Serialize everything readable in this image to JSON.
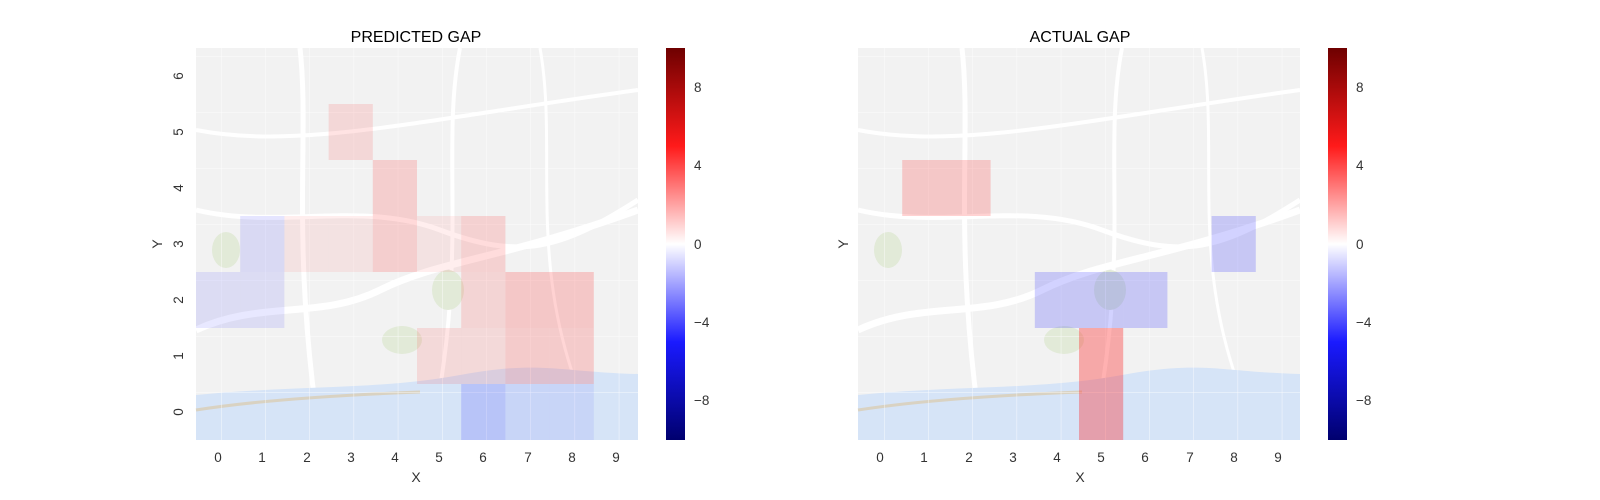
{
  "chart_data": [
    {
      "type": "heatmap",
      "title": "PREDICTED GAP",
      "xlabel": "X",
      "ylabel": "Y",
      "x_ticks": [
        "0",
        "1",
        "2",
        "3",
        "4",
        "5",
        "6",
        "7",
        "8",
        "9"
      ],
      "y_ticks": [
        "0",
        "1",
        "2",
        "3",
        "4",
        "5",
        "6"
      ],
      "xlim": [
        -0.5,
        9.5
      ],
      "ylim": [
        -0.5,
        6.5
      ],
      "background": "street map (Porto) under a semi-transparent grid",
      "colorbar": {
        "ticks": [
          "8",
          "4",
          "0",
          "−4",
          "−8"
        ],
        "range": [
          -10,
          10
        ],
        "colormap": "seismic"
      },
      "cells": [
        {
          "x": 3,
          "y": 5,
          "value": 1.0
        },
        {
          "x": 4,
          "y": 4,
          "value": 1.6
        },
        {
          "x": 4,
          "y": 3,
          "value": 1.6
        },
        {
          "x": 1,
          "y": 3,
          "value": -0.9
        },
        {
          "x": 0,
          "y": 2,
          "value": -0.7
        },
        {
          "x": 1,
          "y": 2,
          "value": -0.7
        },
        {
          "x": 2,
          "y": 3,
          "value": 0.4
        },
        {
          "x": 3,
          "y": 3,
          "value": 0.3
        },
        {
          "x": 5,
          "y": 3,
          "value": 0.3
        },
        {
          "x": 6,
          "y": 3,
          "value": 1.4
        },
        {
          "x": 6,
          "y": 2,
          "value": 1.2
        },
        {
          "x": 7,
          "y": 2,
          "value": 2.0
        },
        {
          "x": 8,
          "y": 2,
          "value": 2.0
        },
        {
          "x": 5,
          "y": 1,
          "value": 0.9
        },
        {
          "x": 6,
          "y": 1,
          "value": 0.9
        },
        {
          "x": 7,
          "y": 1,
          "value": 1.8
        },
        {
          "x": 8,
          "y": 1,
          "value": 1.8
        },
        {
          "x": 6,
          "y": 0,
          "value": -1.5
        },
        {
          "x": 7,
          "y": 0,
          "value": -0.3
        },
        {
          "x": 8,
          "y": 0,
          "value": -0.3
        }
      ]
    },
    {
      "type": "heatmap",
      "title": "ACTUAL GAP",
      "xlabel": "X",
      "ylabel": "Y",
      "x_ticks": [
        "0",
        "1",
        "2",
        "3",
        "4",
        "5",
        "6",
        "7",
        "8",
        "9"
      ],
      "y_ticks": [
        "0",
        "1",
        "2",
        "3",
        "4",
        "5",
        "6"
      ],
      "xlim": [
        -0.5,
        9.5
      ],
      "ylim": [
        -0.5,
        6.5
      ],
      "background": "street map (Porto) under a semi-transparent grid",
      "colorbar": {
        "ticks": [
          "8",
          "4",
          "0",
          "−4",
          "−8"
        ],
        "range": [
          -10,
          10
        ],
        "colormap": "seismic"
      },
      "cells": [
        {
          "x": 1,
          "y": 4,
          "value": 2.0
        },
        {
          "x": 2,
          "y": 4,
          "value": 2.0
        },
        {
          "x": 8,
          "y": 3,
          "value": -2.0
        },
        {
          "x": 4,
          "y": 2,
          "value": -2.0
        },
        {
          "x": 5,
          "y": 2,
          "value": -2.0
        },
        {
          "x": 6,
          "y": 2,
          "value": -2.0
        },
        {
          "x": 5,
          "y": 1,
          "value": 4.0
        },
        {
          "x": 5,
          "y": 0,
          "value": 4.0
        }
      ]
    }
  ]
}
